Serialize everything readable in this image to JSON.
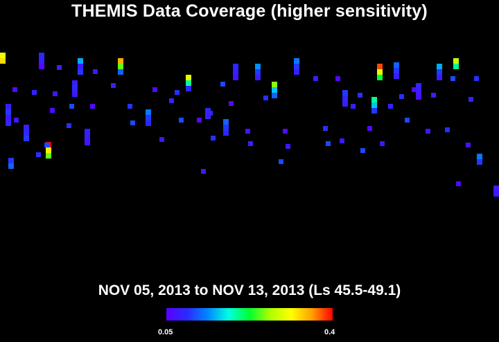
{
  "title": "THEMIS Data Coverage (higher sensitivity)",
  "subtitle": "NOV 05, 2013 to NOV 13, 2013 (Ls 45.5-49.1)",
  "colorbar": {
    "min_label": "0.05",
    "max_label": "0.4",
    "min": 0.05,
    "max": 0.4,
    "colormap": [
      "#5a00ff",
      "#2a2aff",
      "#0088ff",
      "#00ffe0",
      "#00ff30",
      "#b0ff00",
      "#ffff00",
      "#ffa000",
      "#ff0000"
    ]
  },
  "coverage": {
    "value_units": "sensitivity",
    "tracks": [
      {
        "id": 1,
        "v": [
          0.3,
          0.33
        ]
      },
      {
        "id": 2,
        "v": [
          0.08,
          0.1,
          0.07,
          0.09
        ]
      },
      {
        "id": 3,
        "v": [
          0.1,
          0.12
        ]
      },
      {
        "id": 4,
        "v": [
          0.08,
          0.09,
          0.1
        ]
      },
      {
        "id": 5,
        "v": [
          0.09,
          0.08,
          0.06
        ]
      },
      {
        "id": 6,
        "v": [
          0.4,
          0.32,
          0.25
        ]
      },
      {
        "id": 7,
        "v": [
          0.08,
          0.09,
          0.07
        ]
      },
      {
        "id": 8,
        "v": [
          0.15,
          0.08,
          0.1
        ]
      },
      {
        "id": 9,
        "v": [
          0.09,
          0.08,
          0.07
        ]
      },
      {
        "id": 10,
        "v": [
          0.35,
          0.25,
          0.12
        ]
      },
      {
        "id": 11,
        "v": [
          0.13,
          0.1,
          0.09
        ]
      },
      {
        "id": 12,
        "v": [
          0.3,
          0.2,
          0.09
        ]
      },
      {
        "id": 13,
        "v": [
          0.09,
          0.08
        ]
      },
      {
        "id": 14,
        "v": [
          0.12,
          0.1,
          0.09
        ]
      },
      {
        "id": 15,
        "v": [
          0.09,
          0.08,
          0.07
        ]
      },
      {
        "id": 16,
        "v": [
          0.14,
          0.1,
          0.08
        ]
      },
      {
        "id": 17,
        "v": [
          0.26,
          0.16,
          0.12
        ]
      },
      {
        "id": 18,
        "v": [
          0.13,
          0.1,
          0.08
        ]
      },
      {
        "id": 19,
        "v": [
          0.1,
          0.09,
          0.08
        ]
      },
      {
        "id": 20,
        "v": [
          0.2,
          0.16,
          0.1
        ]
      },
      {
        "id": 21,
        "v": [
          0.38,
          0.3,
          0.22
        ]
      },
      {
        "id": 22,
        "v": [
          0.12,
          0.1,
          0.08
        ]
      },
      {
        "id": 23,
        "v": [
          0.09,
          0.08,
          0.07
        ]
      },
      {
        "id": 24,
        "v": [
          0.15,
          0.1,
          0.08
        ]
      },
      {
        "id": 25,
        "v": [
          0.28,
          0.2
        ]
      },
      {
        "id": 26,
        "v": [
          0.13,
          0.1
        ]
      },
      {
        "id": 27,
        "v": [
          0.08,
          0.07
        ]
      }
    ]
  }
}
